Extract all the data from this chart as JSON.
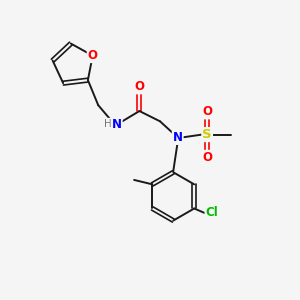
{
  "background_color": "#f5f5f5",
  "bond_color": "#1a1a1a",
  "atom_colors": {
    "O": "#ff0000",
    "N": "#0000ff",
    "S": "#cccc00",
    "Cl": "#00bb00",
    "C": "#1a1a1a",
    "H": "#777777"
  },
  "figsize": [
    3.0,
    3.0
  ],
  "dpi": 100
}
